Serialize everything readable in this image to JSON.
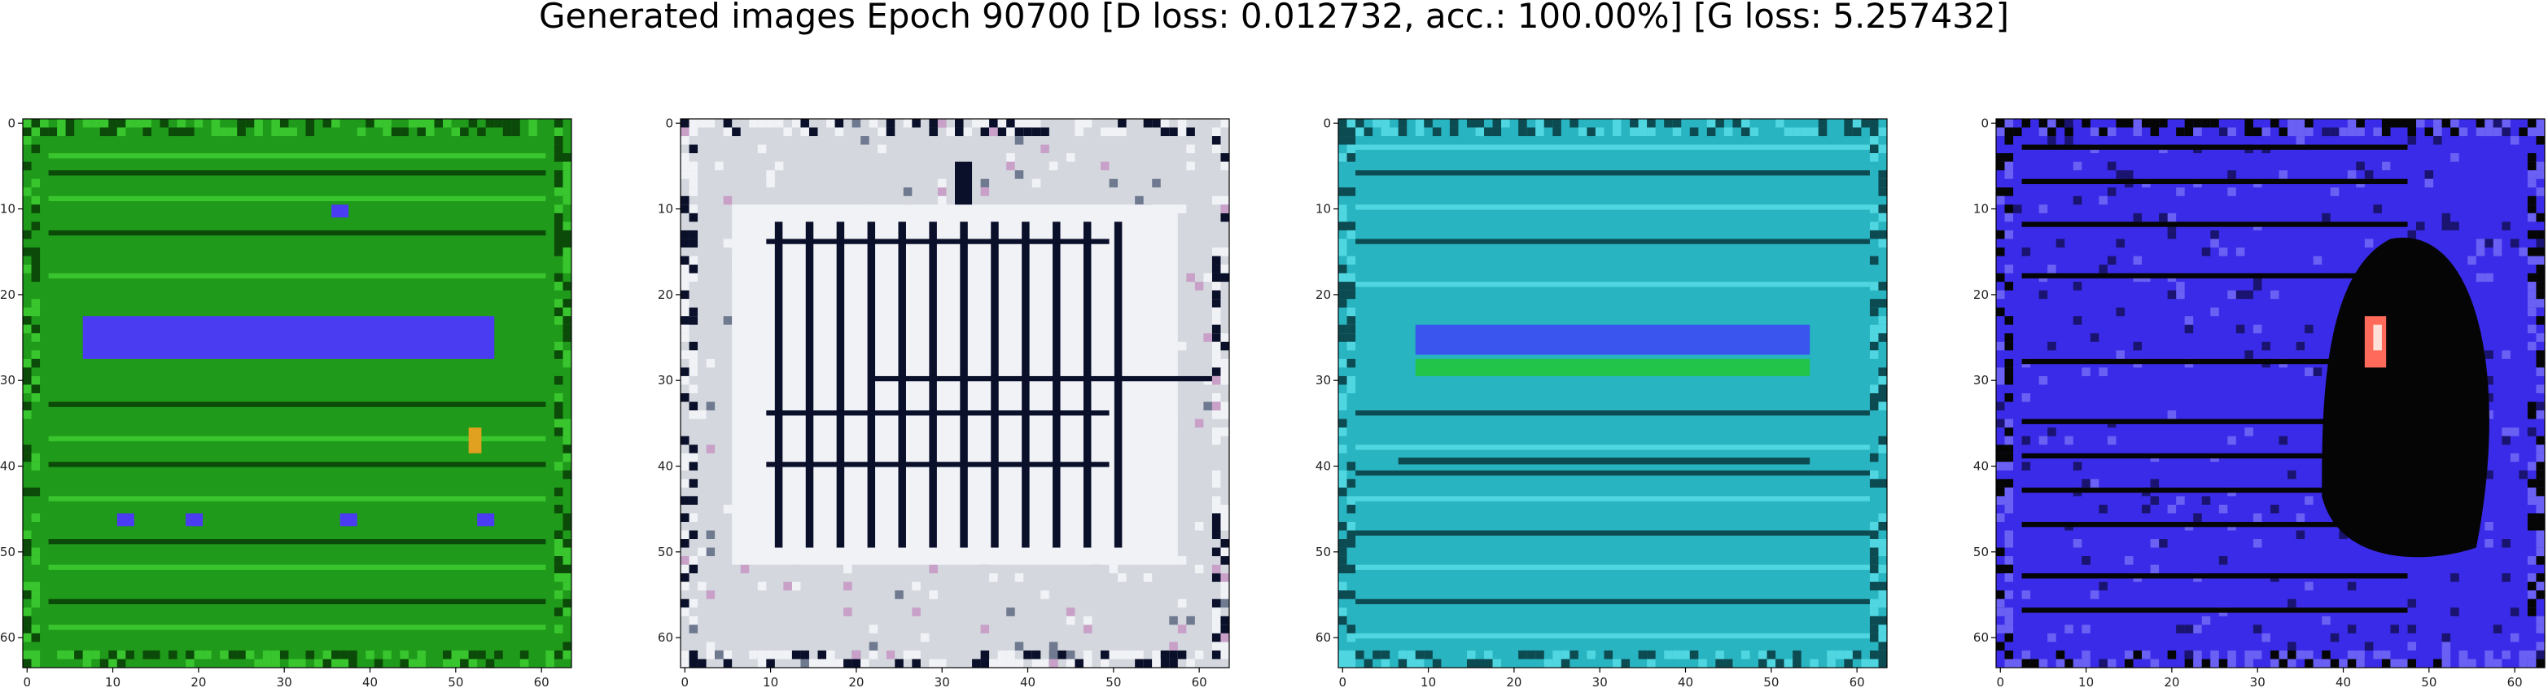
{
  "figure": {
    "title": "Generated images Epoch 90700 [D loss: 0.012732, acc.: 100.00%] [G loss: 5.257432]"
  },
  "axes": {
    "x_ticks": [
      "0",
      "10",
      "20",
      "30",
      "40",
      "50",
      "60"
    ],
    "y_ticks": [
      "0",
      "10",
      "20",
      "30",
      "40",
      "50",
      "60"
    ],
    "xlim": [
      -0.5,
      63.5
    ],
    "ylim": [
      63.5,
      -0.5
    ]
  },
  "panels": [
    {
      "id": "sample-1",
      "colors": {
        "base": "#1f9a1a",
        "dark": "#0b4a08",
        "light": "#39c52e",
        "accent": "#4a3cf0",
        "hot": "#e0a020"
      }
    },
    {
      "id": "sample-2",
      "colors": {
        "base": "#d4d8de",
        "dark": "#0a0f2a",
        "light": "#f0f2f6",
        "accent": "#6f7a90",
        "hot": "#c8a0c8"
      }
    },
    {
      "id": "sample-3",
      "colors": {
        "base": "#28b4c0",
        "dark": "#0d4b52",
        "light": "#4fd6e0",
        "accent": "#3a55ee",
        "hot": "#22c44a"
      }
    },
    {
      "id": "sample-4",
      "colors": {
        "base": "#3a2be8",
        "dark": "#050505",
        "light": "#6a60f4",
        "accent": "#1a1470",
        "hot": "#ff6a5a"
      }
    }
  ]
}
